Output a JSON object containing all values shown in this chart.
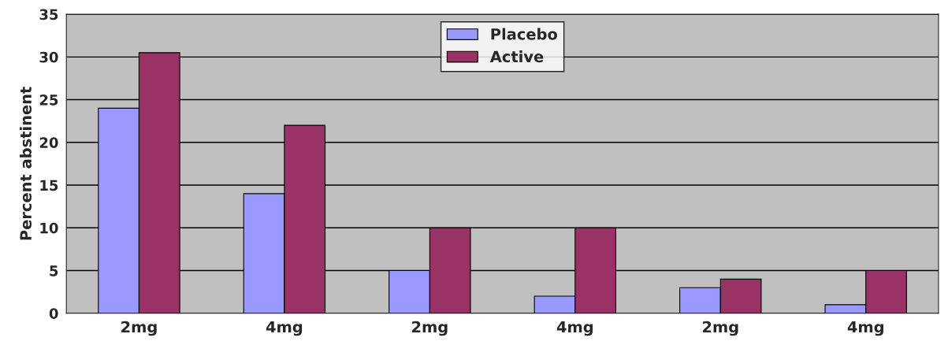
{
  "chart_data": {
    "type": "bar",
    "ylabel": "Percent abstinent",
    "categories": [
      "2mg",
      "4mg",
      "2mg",
      "4mg",
      "2mg",
      "4mg"
    ],
    "series": [
      {
        "name": "Placebo",
        "color": "#9999ff",
        "values": [
          24,
          14,
          5,
          2,
          3,
          1
        ]
      },
      {
        "name": "Active",
        "color": "#993366",
        "values": [
          30.5,
          22,
          10,
          10,
          4,
          5
        ]
      }
    ],
    "ylim": [
      0,
      35
    ],
    "yticks": [
      0,
      5,
      10,
      15,
      20,
      25,
      30,
      35
    ],
    "grid": "y",
    "legend": "top"
  }
}
